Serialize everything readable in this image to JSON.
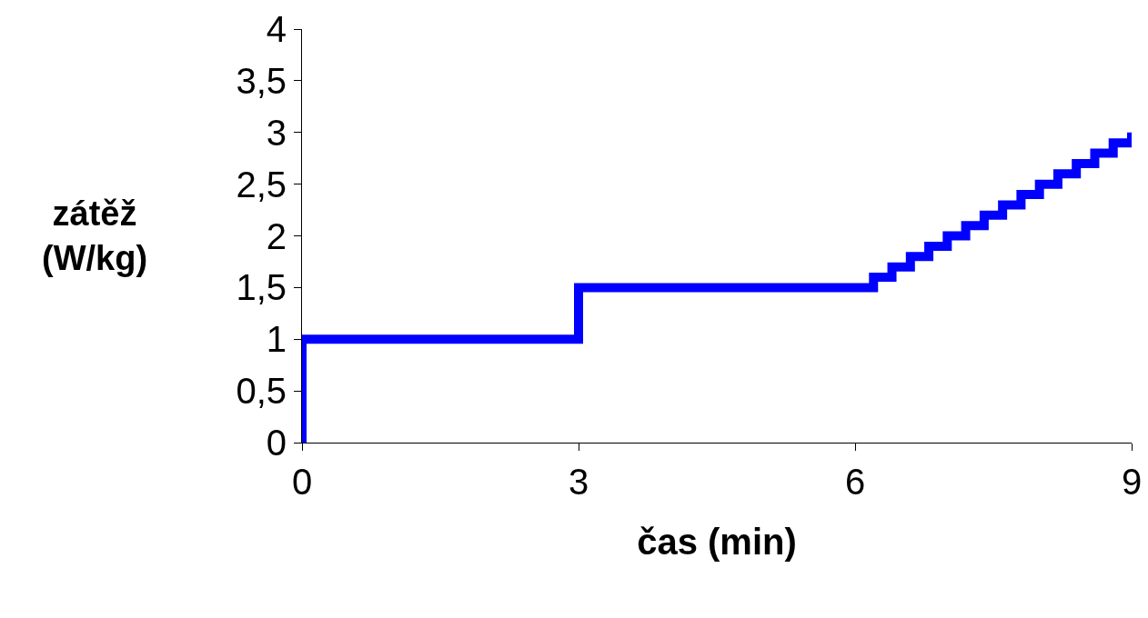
{
  "chart_data": {
    "type": "step",
    "xlabel": "čas (min)",
    "ylabel": "zátěž\n(W/kg)",
    "x": [
      0,
      0,
      3,
      6,
      6.2,
      6.4,
      6.6,
      6.8,
      7,
      7.2,
      7.4,
      7.6,
      7.8,
      8,
      8.2,
      8.4,
      8.6,
      8.8,
      9
    ],
    "series": [
      {
        "color": "#0000ff",
        "values": [
          0,
          1,
          1.5,
          1.5,
          1.6,
          1.7,
          1.8,
          1.9,
          2,
          2.1,
          2.2,
          2.3,
          2.4,
          2.5,
          2.6,
          2.7,
          2.8,
          2.9,
          3
        ]
      }
    ],
    "xlim": [
      0,
      9
    ],
    "xticks": [
      0,
      3,
      6,
      9
    ],
    "ylim": [
      0,
      4
    ],
    "yticks": [
      0,
      {
        "value": 0.5,
        "label": "0,5"
      },
      1,
      {
        "value": 1.5,
        "label": "1,5"
      },
      2,
      {
        "value": 2.5,
        "label": "2,5"
      },
      3,
      {
        "value": 3.5,
        "label": "3,5"
      },
      4
    ],
    "grid": false,
    "marker": "none",
    "line_style": "solid"
  }
}
